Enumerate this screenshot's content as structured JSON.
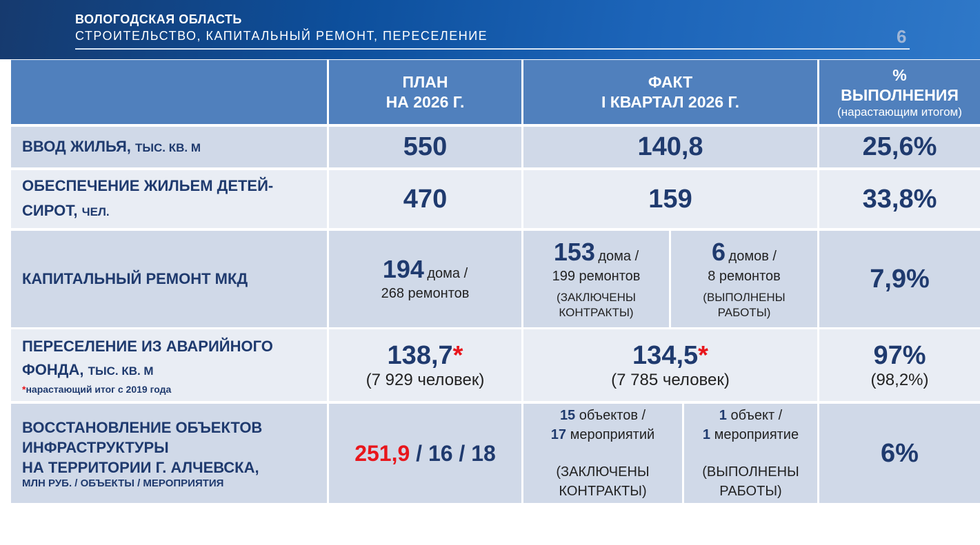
{
  "header": {
    "region": "ВОЛОГОДСКАЯ ОБЛАСТЬ",
    "subtitle": "СТРОИТЕЛЬСТВО, КАПИТАЛЬНЫЙ РЕМОНТ, ПЕРЕСЕЛЕНИЕ",
    "page_number": "6"
  },
  "table": {
    "columns": {
      "plan_line1": "ПЛАН",
      "plan_line2": "НА 2026 Г.",
      "fact_line1": "ФАКТ",
      "fact_line2": "I КВАРТАЛ 2026 Г.",
      "pct_line1": "%",
      "pct_line2": "ВЫПОЛНЕНИЯ",
      "pct_note": "(нарастающим итогом)"
    },
    "rows": [
      {
        "label": "ВВОД ЖИЛЬЯ,",
        "unit": "ТЫС. КВ. М",
        "plan": "550",
        "fact": "140,8",
        "pct": "25,6%"
      },
      {
        "label_line1": "ОБЕСПЕЧЕНИЕ ЖИЛЬЕМ ДЕТЕЙ-",
        "label_line2": "СИРОТ,",
        "unit": "ЧЕЛ.",
        "plan": "470",
        "fact": "159",
        "pct": "33,8%"
      },
      {
        "label": "КАПИТАЛЬНЫЙ РЕМОНТ МКД",
        "plan_num": "194",
        "plan_unit": "дома /",
        "plan_sub": "268 ремонтов",
        "fact_a_num": "153",
        "fact_a_unit": "дома /",
        "fact_a_sub": "199 ремонтов",
        "fact_a_note1": "(ЗАКЛЮЧЕНЫ",
        "fact_a_note2": "КОНТРАКТЫ)",
        "fact_b_num": "6",
        "fact_b_unit": "домов /",
        "fact_b_sub": "8 ремонтов",
        "fact_b_note1": "(ВЫПОЛНЕНЫ",
        "fact_b_note2": "РАБОТЫ)",
        "pct": "7,9%"
      },
      {
        "label_line1": "ПЕРЕСЕЛЕНИЕ ИЗ АВАРИЙНОГО",
        "label_line2": "ФОНДА,",
        "unit": "ТЫС. КВ. М",
        "footnote_star": "*",
        "footnote": "нарастающий итог с 2019 года",
        "plan": "138,7",
        "plan_sub": "(7 929 человек)",
        "fact": "134,5",
        "fact_sub": "(7 785 человек)",
        "star": "*",
        "pct": "97%",
        "pct_sub": "(98,2%)"
      },
      {
        "label_line1": "ВОССТАНОВЛЕНИЕ ОБЪЕКТОВ",
        "label_line2": "ИНФРАСТРУКТУРЫ",
        "label_line3": "НА ТЕРРИТОРИИ Г. АЛЧЕВСКА,",
        "unit": "МЛН РУБ. / ОБЪЕКТЫ / МЕРОПРИЯТИЯ",
        "plan_money": "251,9",
        "plan_rest": " / 16 / 18",
        "fact_a_n1": "15",
        "fact_a_t1": " объектов /",
        "fact_a_n2": "17",
        "fact_a_t2": " мероприятий",
        "fact_a_note1": "(ЗАКЛЮЧЕНЫ",
        "fact_a_note2": "КОНТРАКТЫ)",
        "fact_b_n1": "1",
        "fact_b_t1": " объект /",
        "fact_b_n2": "1",
        "fact_b_t2": " мероприятие",
        "fact_b_note1": "(ВЫПОЛНЕНЫ",
        "fact_b_note2": "РАБОТЫ)",
        "pct": "6%"
      }
    ]
  },
  "colors": {
    "header": "#5080bd",
    "row_dark": "#d0d9e8",
    "row_light": "#e9edf4",
    "text": "#1f3a6e",
    "accent_red": "#e8161c"
  }
}
